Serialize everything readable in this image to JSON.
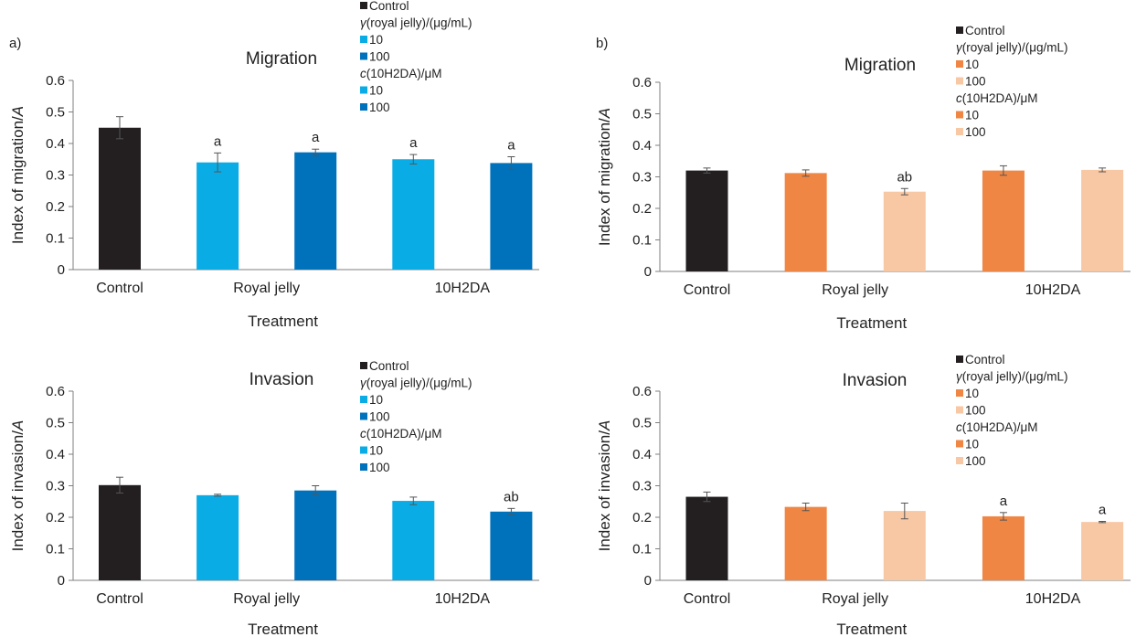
{
  "figure": {
    "panel_labels": [
      "a)",
      "b)"
    ],
    "legend_colors": {
      "control": "#231f20",
      "a_low": "#0aace6",
      "a_high": "#0072bc",
      "b_low": "#f08643",
      "b_high": "#f8c7a3",
      "axis": "#7f7f7f",
      "error_bar": "#555555"
    }
  },
  "chart_data": [
    {
      "type": "bar",
      "panel": "a)",
      "title": "Migration",
      "xlabel": "Treatment",
      "ylabel": "Index of migration/A",
      "ylim": [
        0,
        0.6
      ],
      "yticks": [
        "0",
        "0.1",
        "0.2",
        "0.3",
        "0.4",
        "0.5",
        "0.6"
      ],
      "categories": [
        "Control",
        "Royal jelly",
        "10H2DA"
      ],
      "bars": [
        {
          "group": "Control",
          "value": 0.45,
          "error": 0.035,
          "label": "",
          "color": "#231f20"
        },
        {
          "group": "Royal jelly",
          "value": 0.34,
          "error": 0.03,
          "label": "a",
          "color": "#0aace6"
        },
        {
          "group": "Royal jelly",
          "value": 0.372,
          "error": 0.01,
          "label": "a",
          "color": "#0072bc"
        },
        {
          "group": "10H2DA",
          "value": 0.35,
          "error": 0.015,
          "label": "a",
          "color": "#0aace6"
        },
        {
          "group": "10H2DA",
          "value": 0.338,
          "error": 0.02,
          "label": "a",
          "color": "#0072bc"
        }
      ],
      "legend": [
        {
          "text": "Control",
          "color": "#231f20"
        },
        {
          "text": "γ(royal jelly)/(μg/mL)",
          "color": null
        },
        {
          "text": "10",
          "color": "#0aace6"
        },
        {
          "text": "100",
          "color": "#0072bc"
        },
        {
          "text": "c(10H2DA)/μM",
          "color": null
        },
        {
          "text": "10",
          "color": "#0aace6"
        },
        {
          "text": "100",
          "color": "#0072bc"
        }
      ],
      "legend_position": "top-right"
    },
    {
      "type": "bar",
      "panel": "b)",
      "title": "Migration",
      "xlabel": "Treatment",
      "ylabel": "Index of migration/A",
      "ylim": [
        0,
        0.6
      ],
      "yticks": [
        "0",
        "0.1",
        "0.2",
        "0.3",
        "0.4",
        "0.5",
        "0.6"
      ],
      "categories": [
        "Control",
        "Royal jelly",
        "10H2DA"
      ],
      "bars": [
        {
          "group": "Control",
          "value": 0.32,
          "error": 0.008,
          "label": "",
          "color": "#231f20"
        },
        {
          "group": "Royal jelly",
          "value": 0.312,
          "error": 0.01,
          "label": "",
          "color": "#f08643"
        },
        {
          "group": "Royal jelly",
          "value": 0.253,
          "error": 0.01,
          "label": "ab",
          "color": "#f8c7a3"
        },
        {
          "group": "10H2DA",
          "value": 0.32,
          "error": 0.015,
          "label": "",
          "color": "#f08643"
        },
        {
          "group": "10H2DA",
          "value": 0.322,
          "error": 0.006,
          "label": "",
          "color": "#f8c7a3"
        }
      ],
      "legend": [
        {
          "text": "Control",
          "color": "#231f20"
        },
        {
          "text": "γ(royal jelly)/(μg/mL)",
          "color": null
        },
        {
          "text": "10",
          "color": "#f08643"
        },
        {
          "text": "100",
          "color": "#f8c7a3"
        },
        {
          "text": "c(10H2DA)/μM",
          "color": null
        },
        {
          "text": "10",
          "color": "#f08643"
        },
        {
          "text": "100",
          "color": "#f8c7a3"
        }
      ],
      "legend_position": "top-right"
    },
    {
      "type": "bar",
      "panel": "a)",
      "title": "Invasion",
      "xlabel": "Treatment",
      "ylabel": "Index of invasion/A",
      "ylim": [
        0,
        0.6
      ],
      "yticks": [
        "0",
        "0.1",
        "0.2",
        "0.3",
        "0.4",
        "0.5",
        "0.6"
      ],
      "categories": [
        "Control",
        "Royal jelly",
        "10H2DA"
      ],
      "bars": [
        {
          "group": "Control",
          "value": 0.302,
          "error": 0.025,
          "label": "",
          "color": "#231f20"
        },
        {
          "group": "Royal jelly",
          "value": 0.27,
          "error": 0.003,
          "label": "",
          "color": "#0aace6"
        },
        {
          "group": "Royal jelly",
          "value": 0.285,
          "error": 0.015,
          "label": "",
          "color": "#0072bc"
        },
        {
          "group": "10H2DA",
          "value": 0.252,
          "error": 0.012,
          "label": "",
          "color": "#0aace6"
        },
        {
          "group": "10H2DA",
          "value": 0.218,
          "error": 0.01,
          "label": "ab",
          "color": "#0072bc"
        }
      ],
      "legend": [
        {
          "text": "Control",
          "color": "#231f20"
        },
        {
          "text": "γ(royal jelly)/(μg/mL)",
          "color": null
        },
        {
          "text": "10",
          "color": "#0aace6"
        },
        {
          "text": "100",
          "color": "#0072bc"
        },
        {
          "text": "c(10H2DA)/μM",
          "color": null
        },
        {
          "text": "10",
          "color": "#0aace6"
        },
        {
          "text": "100",
          "color": "#0072bc"
        }
      ],
      "legend_position": "top-right"
    },
    {
      "type": "bar",
      "panel": "b)",
      "title": "Invasion",
      "xlabel": "Treatment",
      "ylabel": "Index of invasion/A",
      "ylim": [
        0,
        0.6
      ],
      "yticks": [
        "0",
        "0.1",
        "0.2",
        "0.3",
        "0.4",
        "0.5",
        "0.6"
      ],
      "categories": [
        "Control",
        "Royal jelly",
        "10H2DA"
      ],
      "bars": [
        {
          "group": "Control",
          "value": 0.265,
          "error": 0.015,
          "label": "",
          "color": "#231f20"
        },
        {
          "group": "Royal jelly",
          "value": 0.233,
          "error": 0.012,
          "label": "",
          "color": "#f08643"
        },
        {
          "group": "Royal jelly",
          "value": 0.22,
          "error": 0.025,
          "label": "",
          "color": "#f8c7a3"
        },
        {
          "group": "10H2DA",
          "value": 0.203,
          "error": 0.012,
          "label": "a",
          "color": "#f08643"
        },
        {
          "group": "10H2DA",
          "value": 0.185,
          "error": 0.002,
          "label": "a",
          "color": "#f8c7a3"
        }
      ],
      "legend": [
        {
          "text": "Control",
          "color": "#231f20"
        },
        {
          "text": "γ(royal jelly)/(μg/mL)",
          "color": null
        },
        {
          "text": "10",
          "color": "#f08643"
        },
        {
          "text": "100",
          "color": "#f8c7a3"
        },
        {
          "text": "c(10H2DA)/μM",
          "color": null
        },
        {
          "text": "10",
          "color": "#f08643"
        },
        {
          "text": "100",
          "color": "#f8c7a3"
        }
      ],
      "legend_position": "top-right"
    }
  ]
}
